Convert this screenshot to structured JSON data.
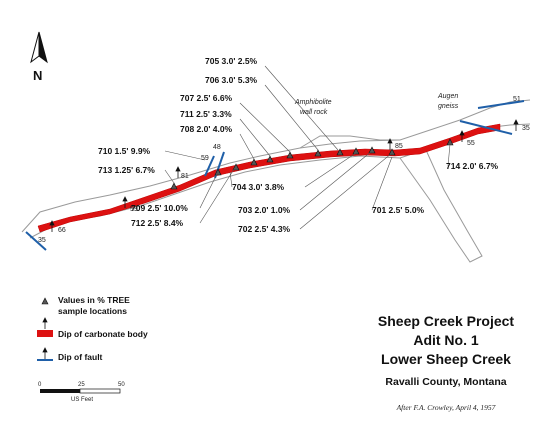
{
  "north_label": "N",
  "samples": [
    {
      "id": "705",
      "text": "705  3.0'  2.5%"
    },
    {
      "id": "706",
      "text": "706  3.0'  5.3%"
    },
    {
      "id": "707",
      "text": "707  2.5'  6.6%"
    },
    {
      "id": "711",
      "text": "711  2.5'  3.3%"
    },
    {
      "id": "708",
      "text": "708  2.0'  4.0%"
    },
    {
      "id": "710",
      "text": "710  1.5'  9.9%"
    },
    {
      "id": "713",
      "text": "713  1.25'  6.7%"
    },
    {
      "id": "709",
      "text": "709  2.5'  10.0%"
    },
    {
      "id": "712",
      "text": "712  2.5'  8.4%"
    },
    {
      "id": "704",
      "text": "704  3.0'  3.8%"
    },
    {
      "id": "703",
      "text": "703  2.0'  1.0%"
    },
    {
      "id": "702",
      "text": "702  2.5'  4.3%"
    },
    {
      "id": "701",
      "text": "701  2.5'  5.0%"
    },
    {
      "id": "714",
      "text": "714  2.0'  6.7%"
    }
  ],
  "dips": [
    "66",
    "35",
    "59",
    "81",
    "59",
    "48",
    "85",
    "55",
    "35",
    "51"
  ],
  "rock_labels": {
    "amphibolite_1": "Amphibolite",
    "amphibolite_2": "wall rock",
    "augen_1": "Augen",
    "augen_2": "gneiss"
  },
  "legend": {
    "samples": "Values in % TREE",
    "samples_2": "sample locations",
    "carbonate": "Dip of carbonate body",
    "fault": "Dip of fault"
  },
  "scale": {
    "tick_0": "0",
    "tick_25": "25",
    "tick_50": "50",
    "units": "US Feet"
  },
  "title": {
    "line1": "Sheep Creek Project",
    "line2": "Adit No. 1",
    "line3": "Lower Sheep Creek",
    "line4": "Ravalli County, Montana",
    "credit": "After F.A. Crowley, April 4, 1957"
  },
  "colors": {
    "carbonate": "#dd1111",
    "fault": "#1f5fa8",
    "outline": "#9a9a9a"
  }
}
